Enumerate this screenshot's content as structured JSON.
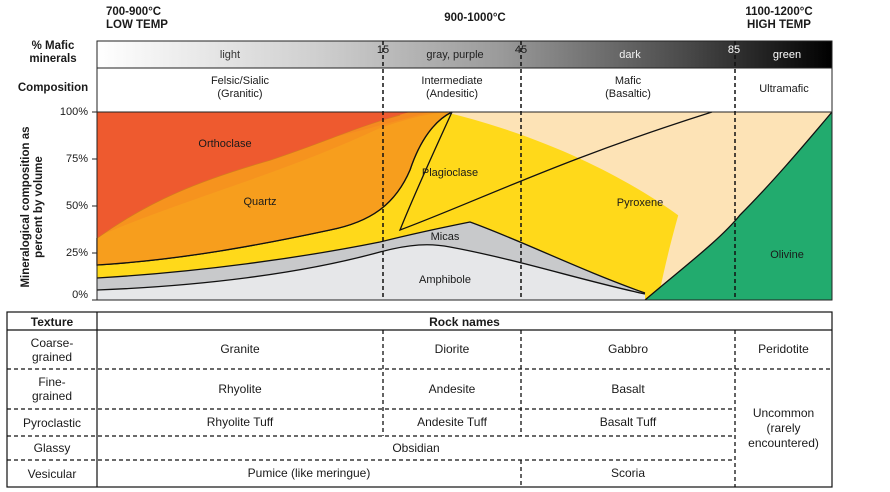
{
  "top": {
    "low_temp_line1": "700-900°C",
    "low_temp_line2": "LOW TEMP",
    "mid_temp": "900-1000°C",
    "high_temp_line1": "1100-1200°C",
    "high_temp_line2": "HIGH TEMP"
  },
  "rows": {
    "mafic_label_line1": "% Mafic",
    "mafic_label_line2": "minerals",
    "composition_label": "Composition"
  },
  "color_bar": {
    "segments": [
      "light",
      "gray, purple",
      "dark",
      "green"
    ],
    "boundaries": [
      "15",
      "45",
      "85"
    ]
  },
  "composition": [
    {
      "line1": "Felsic/Sialic",
      "line2": "(Granitic)"
    },
    {
      "line1": "Intermediate",
      "line2": "(Andesitic)"
    },
    {
      "line1": "Mafic",
      "line2": "(Basaltic)"
    },
    {
      "line1": "Ultramafic",
      "line2": ""
    }
  ],
  "chart_data": {
    "type": "area",
    "ylabel": "Mineralogical composition as percent by volume",
    "y_ticks": [
      "100%",
      "75%",
      "50%",
      "25%",
      "0%"
    ],
    "ylim": [
      0,
      100
    ],
    "x_axis": "% Mafic minerals",
    "xlim": [
      0,
      100
    ],
    "boundaries": [
      15,
      45,
      85
    ],
    "series": [
      {
        "name": "Orthoclase",
        "color": "#ee5a2f"
      },
      {
        "name": "Quartz",
        "color": "#f6931f"
      },
      {
        "name": "Plagioclase",
        "color": "#ffd91a"
      },
      {
        "name": "Pyroxene",
        "color": "#fde3b6"
      },
      {
        "name": "Micas",
        "color": "#c8c9cb"
      },
      {
        "name": "Amphibole",
        "color": "#e6e7e9"
      },
      {
        "name": "Olivine",
        "color": "#22ab6e"
      }
    ]
  },
  "table": {
    "texture_header": "Texture",
    "rock_names_header": "Rock names",
    "rows": [
      {
        "texture_line1": "Coarse-",
        "texture_line2": "grained",
        "felsic": "Granite",
        "intermediate": "Diorite",
        "mafic": "Gabbro"
      },
      {
        "texture_line1": "Fine-",
        "texture_line2": "grained",
        "felsic": "Rhyolite",
        "intermediate": "Andesite",
        "mafic": "Basalt"
      },
      {
        "texture_line1": "Pyroclastic",
        "texture_line2": "",
        "felsic": "Rhyolite Tuff",
        "intermediate": "Andesite Tuff",
        "mafic": "Basalt Tuff"
      },
      {
        "texture_line1": "Glassy",
        "texture_line2": "",
        "span": "Obsidian"
      },
      {
        "texture_line1": "Vesicular",
        "texture_line2": "",
        "felsic": "Pumice (like meringue)",
        "mafic": "Scoria"
      }
    ],
    "ultramafic_coarse": "Peridotite",
    "ultramafic_other_line1": "Uncommon",
    "ultramafic_other_line2": "(rarely",
    "ultramafic_other_line3": "encountered)"
  }
}
